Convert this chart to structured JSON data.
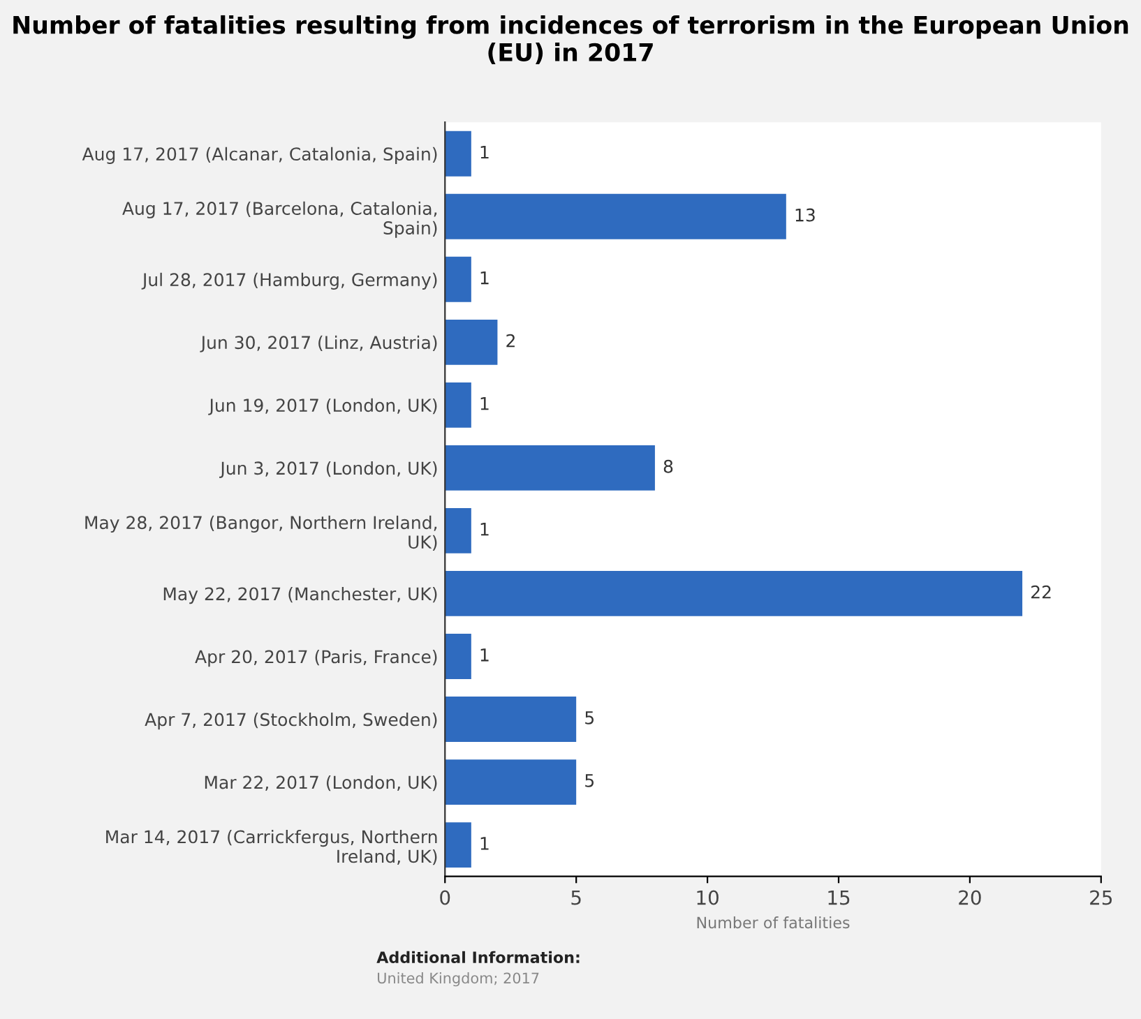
{
  "chart_data": {
    "type": "bar",
    "orientation": "horizontal",
    "title": "Number of fatalities resulting from incidences of terrorism in the European Union (EU) in 2017",
    "categories": [
      "Aug 17, 2017 (Alcanar, Catalonia, Spain)",
      "Aug 17, 2017 (Barcelona, Catalonia,\nSpain)",
      "Jul 28, 2017 (Hamburg, Germany)",
      "Jun 30, 2017 (Linz, Austria)",
      "Jun 19, 2017 (London, UK)",
      "Jun 3, 2017 (London, UK)",
      "May 28, 2017 (Bangor, Northern Ireland,\nUK)",
      "May 22, 2017 (Manchester, UK)",
      "Apr 20, 2017 (Paris, France)",
      "Apr 7, 2017 (Stockholm, Sweden)",
      "Mar 22, 2017 (London, UK)",
      "Mar 14, 2017 (Carrickfergus, Northern\nIreland, UK)"
    ],
    "values": [
      1,
      13,
      1,
      2,
      1,
      8,
      1,
      22,
      1,
      5,
      5,
      1
    ],
    "color": "#2f6bbf",
    "xlim": [
      0,
      25
    ],
    "xticks": [
      0,
      5,
      10,
      15,
      20,
      25
    ],
    "xlabel": "Number of fatalities",
    "data_labels": true,
    "grid": false,
    "annotations": [
      "Additional Information:",
      "United Kingdom; 2017"
    ]
  }
}
